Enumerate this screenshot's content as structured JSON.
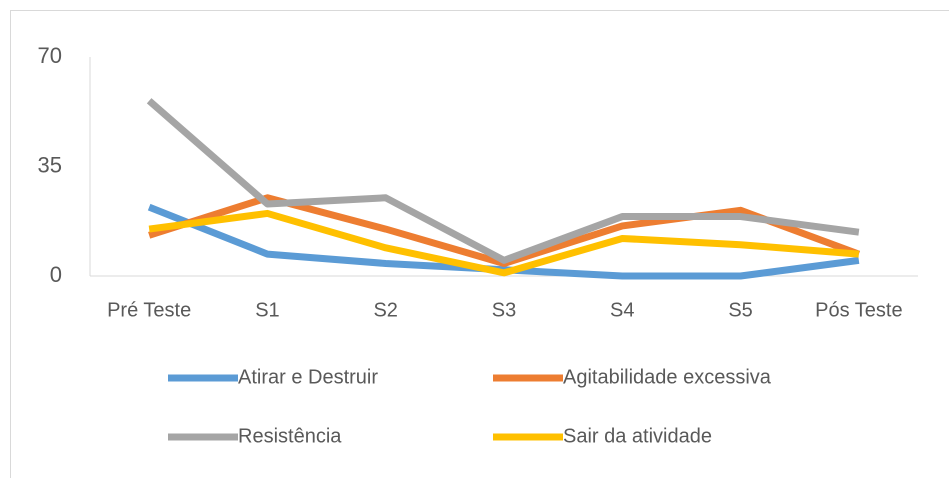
{
  "chart_data": {
    "type": "line",
    "categories": [
      "Pré Teste",
      "S1",
      "S2",
      "S3",
      "S4",
      "S5",
      "Pós Teste"
    ],
    "series": [
      {
        "name": "Atirar e Destruir",
        "color": "#5b9bd5",
        "values": [
          22,
          7,
          4,
          2,
          0,
          0,
          5
        ]
      },
      {
        "name": "Agitabilidade excessiva",
        "color": "#ed7d31",
        "values": [
          13,
          25,
          15,
          4,
          16,
          21,
          7
        ]
      },
      {
        "name": "Resistência",
        "color": "#a5a5a5",
        "values": [
          56,
          23,
          25,
          5,
          19,
          19,
          14
        ]
      },
      {
        "name": "Sair da atividade",
        "color": "#ffc000",
        "values": [
          15,
          20,
          9,
          1,
          12,
          10,
          7
        ]
      }
    ],
    "ylim": [
      0,
      70
    ],
    "yticks": [
      0,
      35,
      70
    ],
    "grid": false,
    "legend": "bottom"
  }
}
